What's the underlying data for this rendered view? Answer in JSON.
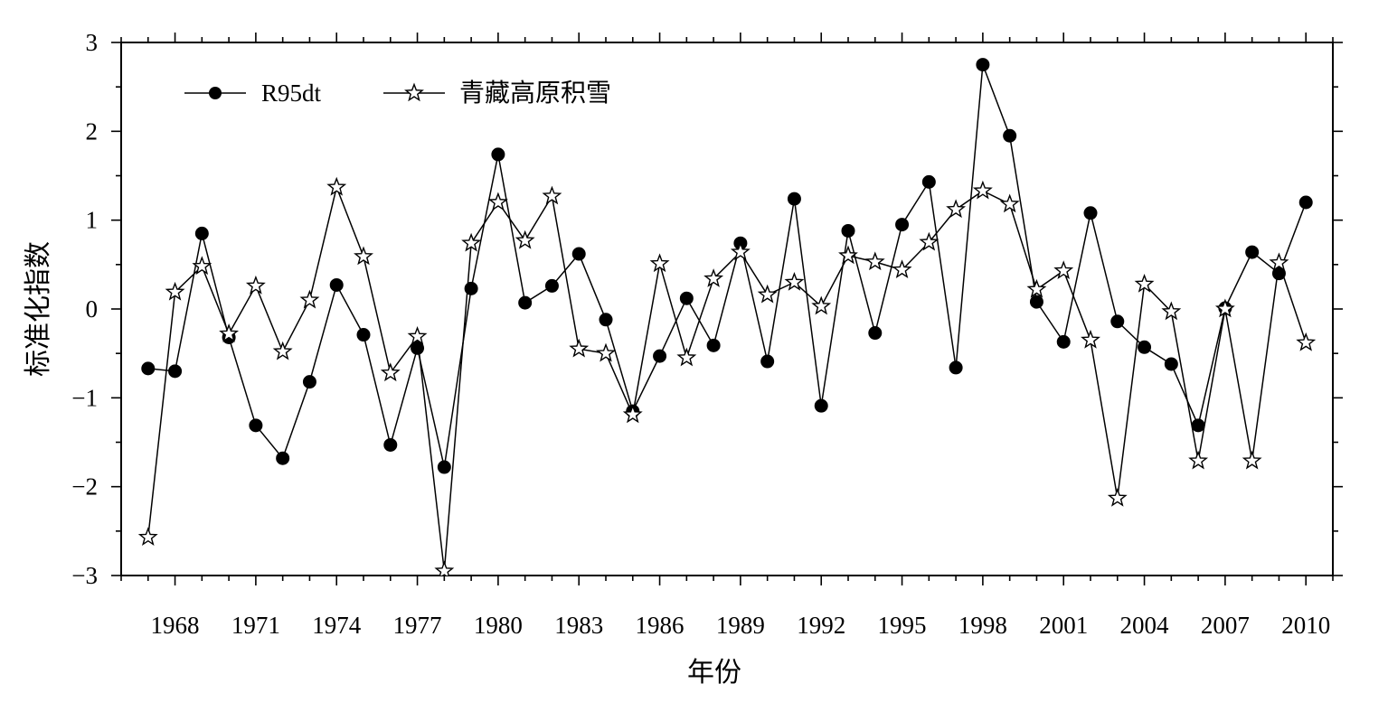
{
  "chart_data": {
    "type": "line",
    "title": "",
    "xlabel": "年份",
    "ylabel": "标准化指数",
    "xlim": [
      1966,
      2011
    ],
    "ylim": [
      -3,
      3
    ],
    "x_ticks": [
      1968,
      1971,
      1974,
      1977,
      1980,
      1983,
      1986,
      1989,
      1992,
      1995,
      1998,
      2001,
      2004,
      2007,
      2010
    ],
    "y_ticks": [
      -3,
      -2,
      -1,
      0,
      1,
      2,
      3
    ],
    "y_tick_labels": [
      "−3",
      "−2",
      "−1",
      "0",
      "1",
      "2",
      "3"
    ],
    "grid": false,
    "legend_position": "top-left",
    "x": [
      1967,
      1968,
      1969,
      1970,
      1971,
      1972,
      1973,
      1974,
      1975,
      1976,
      1977,
      1978,
      1979,
      1980,
      1981,
      1982,
      1983,
      1984,
      1985,
      1986,
      1987,
      1988,
      1989,
      1990,
      1991,
      1992,
      1993,
      1994,
      1995,
      1996,
      1997,
      1998,
      1999,
      2000,
      2001,
      2002,
      2003,
      2004,
      2005,
      2006,
      2007,
      2008,
      2009,
      2010
    ],
    "series": [
      {
        "name": "R95dt",
        "marker": "filled-circle",
        "color": "#000000",
        "values": [
          -0.67,
          -0.7,
          0.85,
          -0.32,
          -1.31,
          -1.68,
          -0.82,
          0.27,
          -0.29,
          -1.53,
          -0.44,
          -1.78,
          0.23,
          1.74,
          0.07,
          0.26,
          0.62,
          -0.12,
          -1.15,
          -0.53,
          0.12,
          -0.41,
          0.74,
          -0.59,
          1.24,
          -1.09,
          0.88,
          -0.27,
          0.95,
          1.43,
          -0.66,
          2.75,
          1.95,
          0.08,
          -0.37,
          1.08,
          -0.14,
          -0.43,
          -0.62,
          -1.31,
          0.01,
          0.64,
          0.4,
          1.2
        ]
      },
      {
        "name": "青藏高原积雪",
        "marker": "open-star",
        "color": "#000000",
        "values": [
          -2.57,
          0.19,
          0.48,
          -0.28,
          0.26,
          -0.48,
          0.1,
          1.37,
          0.59,
          -0.72,
          -0.31,
          -2.95,
          0.74,
          1.2,
          0.77,
          1.27,
          -0.45,
          -0.5,
          -1.19,
          0.51,
          -0.55,
          0.34,
          0.64,
          0.16,
          0.3,
          0.03,
          0.6,
          0.53,
          0.44,
          0.75,
          1.12,
          1.33,
          1.18,
          0.22,
          0.43,
          -0.35,
          -2.13,
          0.28,
          -0.03,
          -1.71,
          0.0,
          -1.71,
          0.52,
          -0.38
        ]
      }
    ]
  }
}
